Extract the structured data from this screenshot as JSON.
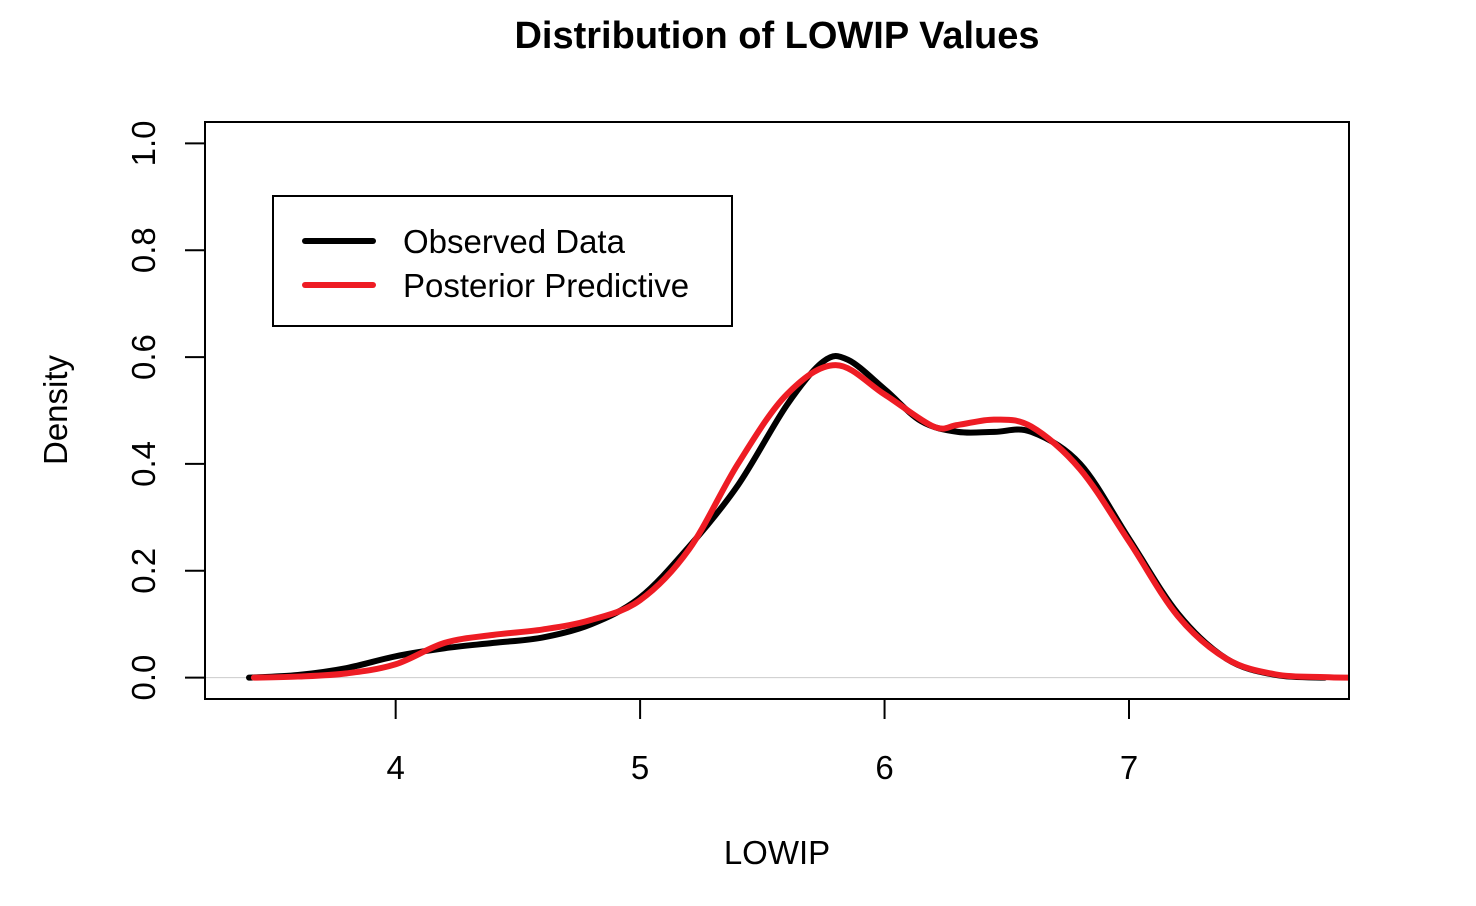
{
  "chart_data": {
    "type": "line",
    "title": "Distribution of LOWIP Values",
    "xlabel": "LOWIP",
    "ylabel": "Density",
    "xlim": [
      3.22,
      7.9
    ],
    "ylim": [
      -0.04,
      1.04
    ],
    "x_ticks": [
      {
        "value": 4,
        "label": "4"
      },
      {
        "value": 5,
        "label": "5"
      },
      {
        "value": 6,
        "label": "6"
      },
      {
        "value": 7,
        "label": "7"
      }
    ],
    "y_ticks": [
      {
        "value": 0.0,
        "label": "0.0"
      },
      {
        "value": 0.2,
        "label": "0.2"
      },
      {
        "value": 0.4,
        "label": "0.4"
      },
      {
        "value": 0.6,
        "label": "0.6"
      },
      {
        "value": 0.8,
        "label": "0.8"
      },
      {
        "value": 1.0,
        "label": "1.0"
      }
    ],
    "baseline": 0,
    "grid": false,
    "legend_position": "top-left",
    "series": [
      {
        "name": "Observed Data",
        "color": "#000000",
        "points": [
          [
            3.4,
            0.0
          ],
          [
            3.6,
            0.005
          ],
          [
            3.8,
            0.018
          ],
          [
            4.0,
            0.04
          ],
          [
            4.2,
            0.055
          ],
          [
            4.4,
            0.065
          ],
          [
            4.6,
            0.075
          ],
          [
            4.8,
            0.1
          ],
          [
            5.0,
            0.15
          ],
          [
            5.2,
            0.245
          ],
          [
            5.4,
            0.36
          ],
          [
            5.6,
            0.51
          ],
          [
            5.75,
            0.592
          ],
          [
            5.85,
            0.595
          ],
          [
            6.0,
            0.54
          ],
          [
            6.15,
            0.48
          ],
          [
            6.3,
            0.46
          ],
          [
            6.45,
            0.46
          ],
          [
            6.6,
            0.46
          ],
          [
            6.8,
            0.4
          ],
          [
            7.0,
            0.26
          ],
          [
            7.2,
            0.12
          ],
          [
            7.4,
            0.035
          ],
          [
            7.6,
            0.005
          ],
          [
            7.8,
            0.0
          ]
        ]
      },
      {
        "name": "Posterior Predictive",
        "color": "#ee1c24",
        "points": [
          [
            3.42,
            0.0
          ],
          [
            3.6,
            0.002
          ],
          [
            3.8,
            0.008
          ],
          [
            4.0,
            0.025
          ],
          [
            4.2,
            0.065
          ],
          [
            4.4,
            0.08
          ],
          [
            4.6,
            0.09
          ],
          [
            4.8,
            0.108
          ],
          [
            5.0,
            0.145
          ],
          [
            5.2,
            0.24
          ],
          [
            5.4,
            0.4
          ],
          [
            5.6,
            0.53
          ],
          [
            5.8,
            0.585
          ],
          [
            6.0,
            0.53
          ],
          [
            6.2,
            0.47
          ],
          [
            6.3,
            0.473
          ],
          [
            6.45,
            0.483
          ],
          [
            6.6,
            0.47
          ],
          [
            6.8,
            0.39
          ],
          [
            7.0,
            0.255
          ],
          [
            7.2,
            0.115
          ],
          [
            7.4,
            0.035
          ],
          [
            7.6,
            0.006
          ],
          [
            7.8,
            0.001
          ],
          [
            7.9,
            0.0
          ]
        ]
      }
    ]
  }
}
